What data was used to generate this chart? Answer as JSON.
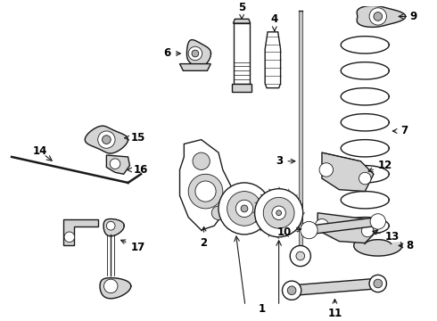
{
  "background_color": "#ffffff",
  "line_color": "#1a1a1a",
  "label_color": "#000000",
  "figsize": [
    4.9,
    3.6
  ],
  "dpi": 100,
  "font_size": 8.5,
  "lw_thin": 0.6,
  "lw_med": 1.0,
  "lw_thick": 1.8,
  "gray_light": "#d4d4d4",
  "gray_mid": "#b0b0b0",
  "gray_dark": "#888888"
}
